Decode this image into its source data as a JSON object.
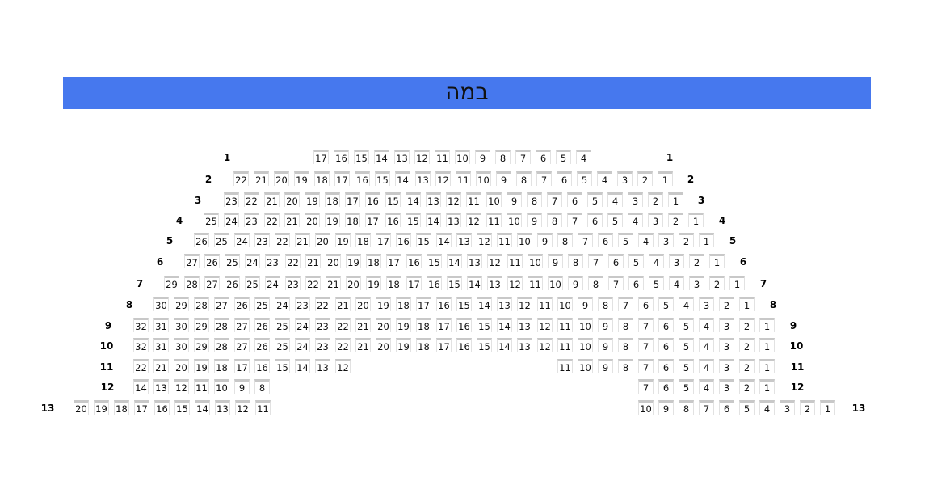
{
  "stage": {
    "label": "במה",
    "color": "#4678ee"
  },
  "rows": [
    {
      "label": "1",
      "sections": [
        [
          17,
          16,
          15,
          14,
          13,
          12,
          11,
          10,
          9,
          8,
          7,
          6,
          5,
          4
        ]
      ]
    },
    {
      "label": "2",
      "sections": [
        [
          22,
          21,
          20,
          19,
          18,
          17,
          16,
          15,
          14,
          13,
          12,
          11,
          10,
          9,
          8,
          7,
          6,
          5,
          4,
          3,
          2,
          1
        ]
      ]
    },
    {
      "label": "3",
      "sections": [
        [
          23,
          22,
          21,
          20,
          19,
          18,
          17,
          16,
          15,
          14,
          13,
          12,
          11,
          10,
          9,
          8,
          7,
          6,
          5,
          4,
          3,
          2,
          1
        ]
      ]
    },
    {
      "label": "4",
      "sections": [
        [
          25,
          24,
          23,
          22,
          21,
          20,
          19,
          18,
          17,
          16,
          15,
          14,
          13,
          12,
          11,
          10,
          9,
          8,
          7,
          6,
          5,
          4,
          3,
          2,
          1
        ]
      ]
    },
    {
      "label": "5",
      "sections": [
        [
          26,
          25,
          24,
          23,
          22,
          21,
          20,
          19,
          18,
          17,
          16,
          15,
          14,
          13,
          12,
          11,
          10,
          9,
          8,
          7,
          6,
          5,
          4,
          3,
          2,
          1
        ]
      ]
    },
    {
      "label": "6",
      "sections": [
        [
          27,
          26,
          25,
          24,
          23,
          22,
          21,
          20,
          19,
          18,
          17,
          16,
          15,
          14,
          13,
          12,
          11,
          10,
          9,
          8,
          7,
          6,
          5,
          4,
          3,
          2,
          1
        ]
      ]
    },
    {
      "label": "7",
      "sections": [
        [
          29,
          28,
          27,
          26,
          25,
          24,
          23,
          22,
          21,
          20,
          19,
          18,
          17,
          16,
          15,
          14,
          13,
          12,
          11,
          10,
          9,
          8,
          7,
          6,
          5,
          4,
          3,
          2,
          1
        ]
      ]
    },
    {
      "label": "8",
      "sections": [
        [
          30,
          29,
          28,
          27,
          26,
          25,
          24,
          23,
          22,
          21,
          20,
          19,
          18,
          17,
          16,
          15,
          14,
          13,
          12,
          11,
          10,
          9,
          8,
          7,
          6,
          5,
          4,
          3,
          2,
          1
        ]
      ]
    },
    {
      "label": "9",
      "sections": [
        [
          32,
          31,
          30,
          29,
          28,
          27,
          26,
          25,
          24,
          23,
          22,
          21,
          20,
          19,
          18,
          17,
          16,
          15,
          14,
          13,
          12,
          11,
          10,
          9,
          8,
          7,
          6,
          5,
          4,
          3,
          2,
          1
        ]
      ]
    },
    {
      "label": "10",
      "sections": [
        [
          32,
          31,
          30,
          29,
          28,
          27,
          26,
          25,
          24,
          23,
          22,
          21,
          20,
          19,
          18,
          17,
          16,
          15,
          14,
          13,
          12,
          11,
          10,
          9,
          8,
          7,
          6,
          5,
          4,
          3,
          2,
          1
        ]
      ]
    },
    {
      "label": "11",
      "sections": [
        [
          22,
          21,
          20,
          19,
          18,
          17,
          16,
          15,
          14,
          13,
          12
        ],
        [
          11,
          10,
          9,
          8,
          7,
          6,
          5,
          4,
          3,
          2,
          1
        ]
      ]
    },
    {
      "label": "12",
      "sections": [
        [
          14,
          13,
          12,
          11,
          10,
          9,
          8
        ],
        [
          7,
          6,
          5,
          4,
          3,
          2,
          1
        ]
      ]
    },
    {
      "label": "13",
      "sections": [
        [
          20,
          19,
          18,
          17,
          16,
          15,
          14,
          13,
          12,
          11
        ],
        [
          10,
          9,
          8,
          7,
          6,
          5,
          4,
          3,
          2,
          1
        ]
      ]
    }
  ]
}
